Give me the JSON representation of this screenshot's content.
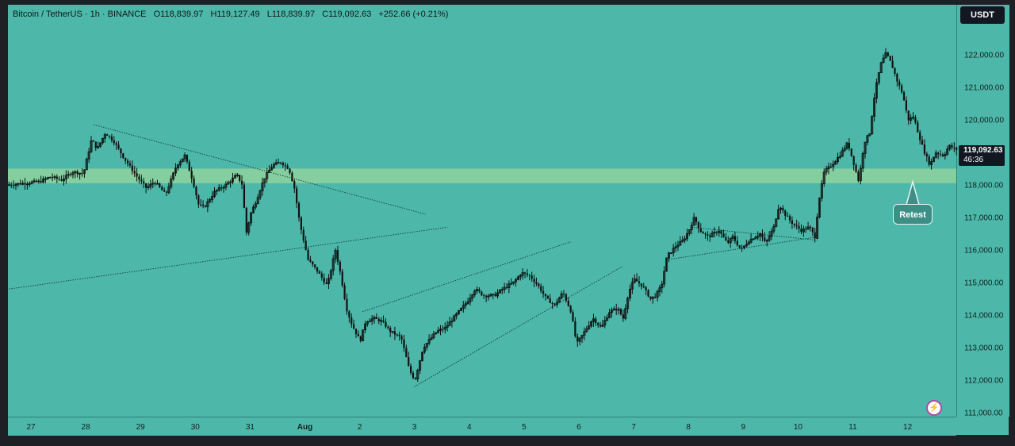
{
  "header": {
    "symbol": "Bitcoin / TetherUS · 1h · BINANCE",
    "open": "O118,839.97",
    "high": "H119,127.49",
    "low": "L118,839.97",
    "close": "C119,092.63",
    "change": "+252.66 (+0.21%)"
  },
  "currency_button": "USDT",
  "last_price_tag": {
    "price": "119,092.63",
    "countdown": "46:36"
  },
  "annotation": {
    "label": "Retest"
  },
  "colors": {
    "background": "#4db8aa",
    "candle": "#0d1110",
    "zone": "#8fd19e",
    "frame": "#1e2026"
  },
  "icons": {
    "bottom_right": "lightning-icon"
  },
  "chart_data": {
    "type": "candlestick",
    "title": "Bitcoin / TetherUS · 1h · BINANCE",
    "xlabel": "",
    "ylabel": "",
    "ylim": [
      110800,
      122600
    ],
    "y_ticks": [
      "122,000.00",
      "121,000.00",
      "120,000.00",
      "118,000.00",
      "117,000.00",
      "116,000.00",
      "115,000.00",
      "114,000.00",
      "113,000.00",
      "112,000.00",
      "111,000.00"
    ],
    "y_tick_values": [
      122000,
      121000,
      120000,
      118000,
      117000,
      116000,
      115000,
      114000,
      113000,
      112000,
      111000
    ],
    "x_ticks": [
      "27",
      "28",
      "29",
      "30",
      "31",
      "Aug",
      "2",
      "3",
      "4",
      "5",
      "6",
      "7",
      "8",
      "9",
      "10",
      "11",
      "12"
    ],
    "x_tick_days": [
      0,
      1,
      2,
      3,
      4,
      5,
      6,
      7,
      8,
      9,
      10,
      11,
      12,
      13,
      14,
      15,
      16
    ],
    "x_unit": "days",
    "grid": false,
    "zone": {
      "low": 118050,
      "high": 118500
    },
    "last_price": 119092.63,
    "anchors": [
      [
        -0.4,
        118000
      ],
      [
        0.2,
        118100
      ],
      [
        0.4,
        118250
      ],
      [
        0.6,
        118150
      ],
      [
        0.8,
        118400
      ],
      [
        1.0,
        118350
      ],
      [
        1.15,
        119400
      ],
      [
        1.25,
        119100
      ],
      [
        1.4,
        119600
      ],
      [
        1.55,
        119350
      ],
      [
        1.75,
        118800
      ],
      [
        2.0,
        118200
      ],
      [
        2.15,
        117900
      ],
      [
        2.3,
        118100
      ],
      [
        2.5,
        117700
      ],
      [
        2.7,
        118600
      ],
      [
        2.85,
        118900
      ],
      [
        3.0,
        118100
      ],
      [
        3.1,
        117400
      ],
      [
        3.2,
        117300
      ],
      [
        3.4,
        117800
      ],
      [
        3.6,
        118000
      ],
      [
        3.8,
        118300
      ],
      [
        3.9,
        118000
      ],
      [
        3.97,
        116500
      ],
      [
        4.05,
        117100
      ],
      [
        4.15,
        117500
      ],
      [
        4.3,
        118200
      ],
      [
        4.45,
        118600
      ],
      [
        4.6,
        118700
      ],
      [
        4.75,
        118500
      ],
      [
        4.85,
        117900
      ],
      [
        4.95,
        116800
      ],
      [
        5.1,
        115700
      ],
      [
        5.25,
        115400
      ],
      [
        5.45,
        114900
      ],
      [
        5.6,
        116000
      ],
      [
        5.7,
        115200
      ],
      [
        5.8,
        114200
      ],
      [
        5.9,
        113700
      ],
      [
        6.05,
        113200
      ],
      [
        6.15,
        113800
      ],
      [
        6.3,
        113900
      ],
      [
        6.45,
        113800
      ],
      [
        6.6,
        113500
      ],
      [
        6.8,
        113300
      ],
      [
        6.95,
        112300
      ],
      [
        7.05,
        112000
      ],
      [
        7.2,
        113000
      ],
      [
        7.3,
        113200
      ],
      [
        7.45,
        113500
      ],
      [
        7.6,
        113600
      ],
      [
        7.75,
        113900
      ],
      [
        8.0,
        114400
      ],
      [
        8.15,
        114800
      ],
      [
        8.3,
        114600
      ],
      [
        8.5,
        114600
      ],
      [
        8.65,
        114800
      ],
      [
        8.85,
        115000
      ],
      [
        9.0,
        115300
      ],
      [
        9.15,
        115200
      ],
      [
        9.3,
        114900
      ],
      [
        9.45,
        114500
      ],
      [
        9.6,
        114300
      ],
      [
        9.75,
        114700
      ],
      [
        9.9,
        114100
      ],
      [
        10.0,
        113100
      ],
      [
        10.15,
        113500
      ],
      [
        10.3,
        113900
      ],
      [
        10.45,
        113600
      ],
      [
        10.6,
        114100
      ],
      [
        10.75,
        114200
      ],
      [
        10.85,
        113900
      ],
      [
        10.95,
        114700
      ],
      [
        11.05,
        115100
      ],
      [
        11.2,
        114900
      ],
      [
        11.35,
        114500
      ],
      [
        11.45,
        114600
      ],
      [
        11.55,
        114900
      ],
      [
        11.65,
        115800
      ],
      [
        11.8,
        116100
      ],
      [
        11.95,
        116300
      ],
      [
        12.05,
        116600
      ],
      [
        12.15,
        117000
      ],
      [
        12.25,
        116600
      ],
      [
        12.4,
        116400
      ],
      [
        12.6,
        116600
      ],
      [
        12.75,
        116200
      ],
      [
        12.85,
        116400
      ],
      [
        13.0,
        116000
      ],
      [
        13.15,
        116300
      ],
      [
        13.35,
        116500
      ],
      [
        13.45,
        116200
      ],
      [
        13.6,
        116700
      ],
      [
        13.7,
        117400
      ],
      [
        13.8,
        117100
      ],
      [
        13.95,
        116800
      ],
      [
        14.1,
        116600
      ],
      [
        14.25,
        116700
      ],
      [
        14.35,
        116400
      ],
      [
        14.42,
        117500
      ],
      [
        14.52,
        118400
      ],
      [
        14.65,
        118600
      ],
      [
        14.8,
        118900
      ],
      [
        14.95,
        119300
      ],
      [
        15.05,
        118700
      ],
      [
        15.15,
        118100
      ],
      [
        15.25,
        119300
      ],
      [
        15.35,
        119600
      ],
      [
        15.45,
        120900
      ],
      [
        15.55,
        121700
      ],
      [
        15.65,
        122050
      ],
      [
        15.75,
        121700
      ],
      [
        15.85,
        121200
      ],
      [
        15.95,
        120800
      ],
      [
        16.05,
        120000
      ],
      [
        16.15,
        120100
      ],
      [
        16.25,
        119500
      ],
      [
        16.35,
        119000
      ],
      [
        16.45,
        118600
      ],
      [
        16.55,
        119000
      ],
      [
        16.7,
        118900
      ],
      [
        16.8,
        119200
      ],
      [
        16.92,
        119090
      ]
    ],
    "trendlines": [
      {
        "from": [
          1.15,
          119850
        ],
        "to": [
          7.2,
          117100
        ]
      },
      {
        "from": [
          -0.4,
          114800
        ],
        "to": [
          7.6,
          116700
        ]
      },
      {
        "from": [
          6.05,
          114100
        ],
        "to": [
          9.85,
          116250
        ]
      },
      {
        "from": [
          7.0,
          111800
        ],
        "to": [
          10.8,
          115500
        ]
      },
      {
        "from": [
          12.05,
          116700
        ],
        "to": [
          14.35,
          116300
        ]
      },
      {
        "from": [
          11.6,
          115700
        ],
        "to": [
          14.35,
          116400
        ]
      }
    ]
  }
}
